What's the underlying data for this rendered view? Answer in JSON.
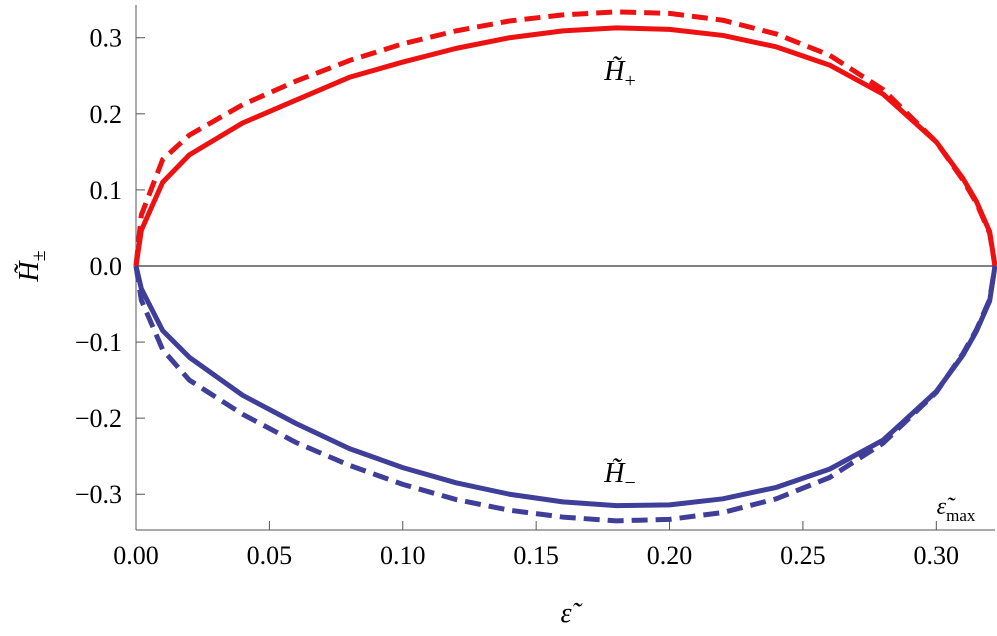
{
  "chart_data": {
    "type": "line",
    "x_label": {
      "base": "ε̃",
      "sub": ""
    },
    "y_label": {
      "base": "H̃",
      "sub": "±"
    },
    "annotations": [
      {
        "base": "H̃",
        "sub": "+"
      },
      {
        "base": "H̃",
        "sub": "−"
      },
      {
        "base": "ε̃",
        "sub": "max"
      }
    ],
    "x": [
      0,
      0.002,
      0.01,
      0.02,
      0.04,
      0.06,
      0.08,
      0.1,
      0.12,
      0.14,
      0.16,
      0.18,
      0.2,
      0.22,
      0.24,
      0.26,
      0.28,
      0.3,
      0.31,
      0.315,
      0.32,
      0.322
    ],
    "series": [
      {
        "color": "#ee1111",
        "dash": false,
        "values": [
          0,
          0.047,
          0.11,
          0.146,
          0.188,
          0.218,
          0.248,
          0.268,
          0.286,
          0.3,
          0.309,
          0.313,
          0.311,
          0.303,
          0.288,
          0.264,
          0.226,
          0.163,
          0.115,
          0.085,
          0.045,
          0
        ]
      },
      {
        "color": "#ee1111",
        "dash": true,
        "values": [
          0,
          0.067,
          0.14,
          0.172,
          0.212,
          0.243,
          0.27,
          0.292,
          0.309,
          0.322,
          0.33,
          0.334,
          0.332,
          0.323,
          0.305,
          0.277,
          0.232,
          0.163,
          0.113,
          0.083,
          0.043,
          0
        ]
      },
      {
        "color": "#3f3f99",
        "dash": false,
        "values": [
          0,
          -0.03,
          -0.085,
          -0.12,
          -0.17,
          -0.207,
          -0.24,
          -0.265,
          -0.285,
          -0.3,
          -0.31,
          -0.315,
          -0.314,
          -0.306,
          -0.291,
          -0.267,
          -0.229,
          -0.165,
          -0.117,
          -0.086,
          -0.046,
          0
        ]
      },
      {
        "color": "#3f3f99",
        "dash": true,
        "values": [
          0,
          -0.045,
          -0.11,
          -0.15,
          -0.195,
          -0.232,
          -0.262,
          -0.287,
          -0.307,
          -0.321,
          -0.33,
          -0.335,
          -0.333,
          -0.324,
          -0.306,
          -0.278,
          -0.233,
          -0.166,
          -0.115,
          -0.084,
          -0.044,
          0
        ]
      }
    ],
    "xlim": [
      0,
      0.322
    ],
    "ylim": [
      -0.347,
      0.343
    ],
    "xticks": [
      {
        "value": 0,
        "label": "0.00"
      },
      {
        "value": 0.05,
        "label": "0.05"
      },
      {
        "value": 0.1,
        "label": "0.10"
      },
      {
        "value": 0.15,
        "label": "0.15"
      },
      {
        "value": 0.2,
        "label": "0.20"
      },
      {
        "value": 0.25,
        "label": "0.25"
      },
      {
        "value": 0.3,
        "label": "0.30"
      }
    ],
    "yticks": [
      {
        "value": -0.3,
        "label": "−0.3"
      },
      {
        "value": -0.2,
        "label": "−0.2"
      },
      {
        "value": -0.1,
        "label": "−0.1"
      },
      {
        "value": 0,
        "label": "0.0"
      },
      {
        "value": 0.1,
        "label": "0.1"
      },
      {
        "value": 0.2,
        "label": "0.2"
      },
      {
        "value": 0.3,
        "label": "0.3"
      }
    ],
    "zero_line": true
  }
}
